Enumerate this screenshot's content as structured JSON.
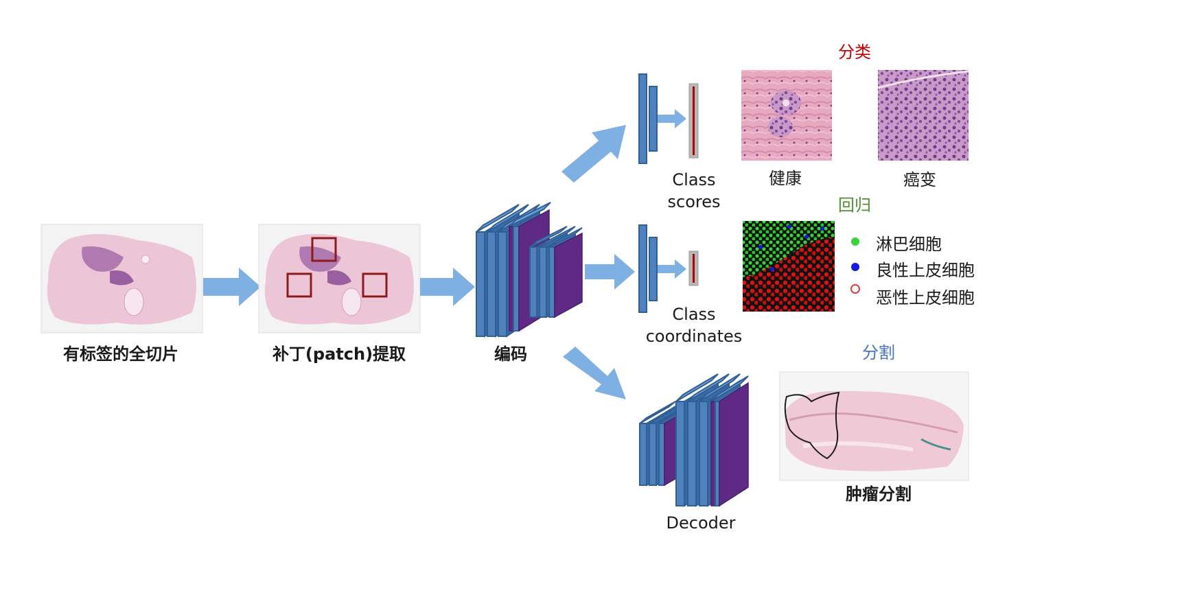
{
  "pipeline": {
    "slide_label": "有标签的全切片",
    "patch_label": "补丁(patch)提取",
    "encoder_label": "编码"
  },
  "classification": {
    "title": "分类",
    "scores_label_line1": "Class",
    "scores_label_line2": "scores",
    "healthy_label": "健康",
    "cancer_label": "癌变"
  },
  "regression": {
    "title": "回归",
    "coords_label_line1": "Class",
    "coords_label_line2": "coordinates",
    "legend": [
      {
        "label": "淋巴细胞",
        "color": "#39d439",
        "marker": "dot"
      },
      {
        "label": "良性上皮细胞",
        "color": "#1919e6",
        "marker": "dot"
      },
      {
        "label": "恶性上皮细胞",
        "color": "#e63939",
        "marker": "ring"
      }
    ]
  },
  "segmentation": {
    "title": "分割",
    "decoder_label": "Decoder",
    "tumor_label": "肿瘤分割"
  },
  "colors": {
    "arrow": "#7fb0e3",
    "classification_title": "#c00000",
    "regression_title": "#4f8f2f",
    "segmentation_title": "#4472c4",
    "patch_box": "#8b1a1a",
    "score_bar": "#b00000",
    "tissue_pink": "#e9b3c6",
    "tissue_purple": "#6b3a8a"
  }
}
